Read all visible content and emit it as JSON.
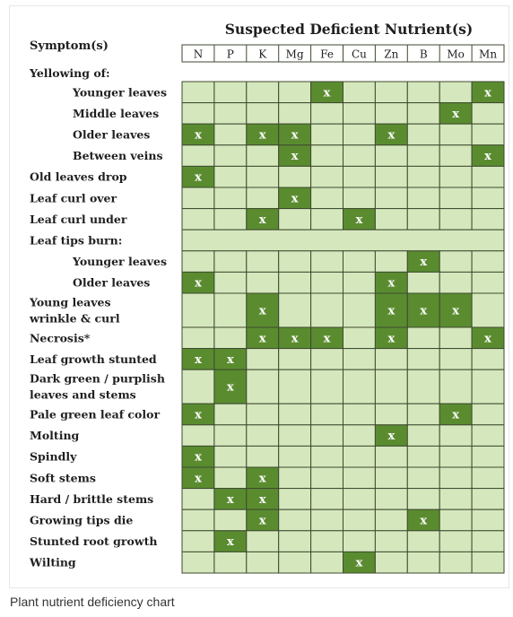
{
  "chart_data": {
    "type": "table",
    "title": "Suspected Deficient Nutrient(s)",
    "row_header": "Symptom(s)",
    "columns": [
      "N",
      "P",
      "K",
      "Mg",
      "Fe",
      "Cu",
      "Zn",
      "B",
      "Mo",
      "Mn"
    ],
    "mark": "x",
    "rows": [
      {
        "label": "Yellowing of:",
        "indent": false,
        "section": true,
        "marks": []
      },
      {
        "label": "Younger leaves",
        "indent": true,
        "marks": [
          "Fe",
          "Mn"
        ]
      },
      {
        "label": "Middle leaves",
        "indent": true,
        "marks": [
          "Mo"
        ]
      },
      {
        "label": "Older leaves",
        "indent": true,
        "marks": [
          "N",
          "K",
          "Mg",
          "Zn"
        ]
      },
      {
        "label": "Between veins",
        "indent": true,
        "marks": [
          "Mg",
          "Mn"
        ]
      },
      {
        "label": "Old leaves drop",
        "indent": false,
        "marks": [
          "N"
        ]
      },
      {
        "label": "Leaf curl over",
        "indent": false,
        "marks": [
          "Mg"
        ]
      },
      {
        "label": "Leaf curl under",
        "indent": false,
        "marks": [
          "K",
          "Cu"
        ]
      },
      {
        "label": "Leaf tips burn:",
        "indent": false,
        "merged": true,
        "marks": []
      },
      {
        "label": "Younger leaves",
        "indent": true,
        "marks": [
          "B"
        ]
      },
      {
        "label": "Older leaves",
        "indent": true,
        "marks": [
          "N",
          "Zn"
        ]
      },
      {
        "label": "Young leaves\nwrinkle & curl",
        "indent": false,
        "tall": true,
        "marks": [
          "K",
          "Zn",
          "B",
          "Mo"
        ]
      },
      {
        "label": "Necrosis*",
        "indent": false,
        "marks": [
          "K",
          "Mg",
          "Fe",
          "Zn",
          "Mn"
        ]
      },
      {
        "label": "Leaf growth stunted",
        "indent": false,
        "marks": [
          "N",
          "P"
        ]
      },
      {
        "label": "Dark green / purplish\nleaves and stems",
        "indent": false,
        "tall": true,
        "marks": [
          "P"
        ]
      },
      {
        "label": "Pale green leaf color",
        "indent": false,
        "marks": [
          "N",
          "Mo"
        ]
      },
      {
        "label": "Molting",
        "indent": false,
        "marks": [
          "Zn"
        ]
      },
      {
        "label": "Spindly",
        "indent": false,
        "marks": [
          "N"
        ]
      },
      {
        "label": "Soft stems",
        "indent": false,
        "marks": [
          "N",
          "K"
        ]
      },
      {
        "label": "Hard / brittle stems",
        "indent": false,
        "marks": [
          "P",
          "K"
        ]
      },
      {
        "label": "Growing tips die",
        "indent": false,
        "marks": [
          "K",
          "B"
        ]
      },
      {
        "label": "Stunted root growth",
        "indent": false,
        "marks": [
          "P"
        ]
      },
      {
        "label": "Wilting",
        "indent": false,
        "marks": [
          "Cu"
        ]
      }
    ]
  },
  "colors": {
    "cell_light": "#d5e8bd",
    "cell_mark": "#5a8c2f",
    "grid_line": "#3e4a30",
    "merged_row": "#d5e8bd",
    "text": "#1f1f1f",
    "caption_text": "#333333"
  },
  "caption": "Plant nutrient deficiency chart"
}
